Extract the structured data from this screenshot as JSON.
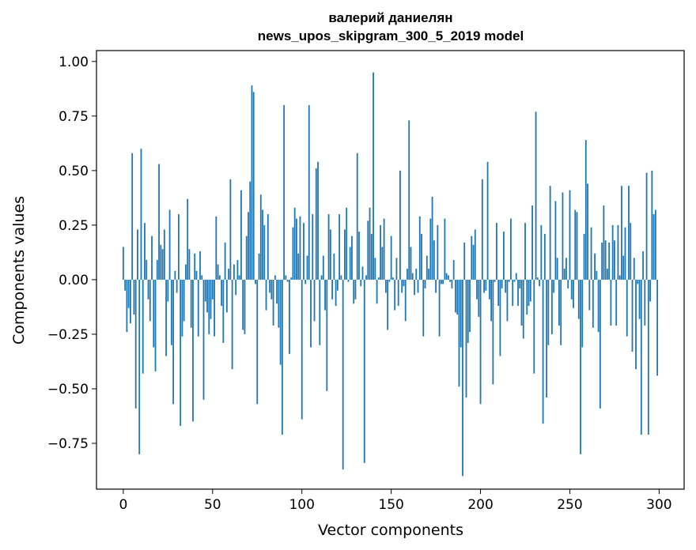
{
  "chart_data": {
    "type": "bar",
    "title_line1": "валерий даниелян",
    "title_line2": "news_upos_skipgram_300_5_2019 model",
    "xlabel": "Vector components",
    "ylabel": "Components values",
    "xlim": [
      -15,
      314
    ],
    "ylim": [
      -0.96,
      1.05
    ],
    "xticks": [
      "0",
      "50",
      "100",
      "150",
      "200",
      "250",
      "300"
    ],
    "xtick_values": [
      0,
      50,
      100,
      150,
      200,
      250,
      300
    ],
    "yticks": [
      "−0.75",
      "−0.50",
      "−0.25",
      "0.00",
      "0.25",
      "0.50",
      "0.75",
      "1.00"
    ],
    "ytick_values": [
      -0.75,
      -0.5,
      -0.25,
      0.0,
      0.25,
      0.5,
      0.75,
      1.0
    ],
    "bar_color": "#1f77b4",
    "grid": false,
    "x": "0..299 (component index)",
    "values": [
      0.15,
      -0.05,
      -0.24,
      -0.13,
      -0.2,
      0.58,
      -0.16,
      -0.59,
      0.23,
      -0.8,
      0.6,
      -0.43,
      0.26,
      0.09,
      -0.09,
      -0.19,
      0.2,
      -0.31,
      -0.42,
      0.09,
      0.53,
      0.16,
      0.14,
      0.23,
      -0.35,
      -0.1,
      0.32,
      -0.3,
      -0.57,
      0.04,
      -0.06,
      0.3,
      -0.67,
      -0.26,
      -0.19,
      0.07,
      0.37,
      0.14,
      -0.22,
      -0.65,
      0.12,
      0.04,
      -0.26,
      0.13,
      0.02,
      -0.55,
      -0.1,
      -0.15,
      -0.25,
      -0.18,
      -0.09,
      -0.26,
      0.29,
      0.07,
      0.02,
      -0.12,
      -0.29,
      0.17,
      -0.15,
      0.05,
      0.46,
      -0.41,
      0.07,
      -0.07,
      0.09,
      0.02,
      0.41,
      -0.23,
      -0.25,
      0.2,
      0.31,
      0.45,
      0.89,
      0.86,
      -0.02,
      -0.57,
      0.12,
      0.39,
      0.32,
      0.25,
      -0.14,
      0.3,
      -0.06,
      -0.09,
      -0.21,
      0.02,
      -0.11,
      -0.22,
      -0.39,
      -0.71,
      0.8,
      0.02,
      -0.01,
      -0.34,
      0.01,
      0.24,
      0.33,
      0.28,
      0.12,
      0.29,
      -0.64,
      0.26,
      -0.02,
      0.11,
      0.8,
      -0.31,
      0.3,
      -0.19,
      0.51,
      0.54,
      -0.3,
      0.02,
      0.11,
      -0.14,
      -0.51,
      0.3,
      0.23,
      -0.09,
      0.12,
      -0.12,
      -0.05,
      0.3,
      0.02,
      -0.87,
      0.23,
      0.33,
      -0.01,
      0.15,
      0.2,
      -0.11,
      -0.09,
      0.58,
      0.22,
      -0.03,
      0.06,
      -0.84,
      0.02,
      0.27,
      0.33,
      0.21,
      0.95,
      0.1,
      -0.11,
      0.01,
      0.25,
      0.15,
      0.28,
      -0.06,
      -0.23,
      -0.01,
      0.2,
      0.01,
      -0.14,
      0.1,
      -0.12,
      0.5,
      -0.06,
      -0.03,
      -0.19,
      0.05,
      0.73,
      0.15,
      0.03,
      -0.07,
      0.05,
      -0.06,
      0.29,
      0.21,
      -0.26,
      -0.04,
      0.11,
      0.05,
      0.28,
      0.38,
      0.18,
      -0.06,
      0.25,
      -0.26,
      -0.02,
      -0.02,
      0.28,
      0.03,
      0.02,
      -0.01,
      -0.04,
      0.09,
      -0.15,
      -0.16,
      -0.49,
      -0.31,
      -0.9,
      0.17,
      -0.54,
      -0.29,
      -0.24,
      0.2,
      0.16,
      0.23,
      -0.09,
      -0.17,
      -0.57,
      0.46,
      -0.06,
      -0.05,
      0.54,
      -0.09,
      -0.19,
      -0.48,
      -0.01,
      0.26,
      -0.12,
      -0.35,
      -0.04,
      0.22,
      -0.06,
      -0.19,
      -0.01,
      0.28,
      -0.12,
      -0.01,
      0.03,
      -0.12,
      -0.04,
      -0.21,
      -0.27,
      0.26,
      -0.16,
      -0.12,
      -0.1,
      0.34,
      -0.43,
      0.77,
      0.01,
      -0.03,
      0.25,
      -0.66,
      0.21,
      -0.54,
      -0.3,
      0.43,
      -0.25,
      -0.06,
      0.36,
      0.1,
      -0.21,
      -0.3,
      0.4,
      0.05,
      0.1,
      -0.04,
      0.41,
      -0.09,
      -0.13,
      0.32,
      0.31,
      -0.18,
      -0.8,
      -0.31,
      0.21,
      0.64,
      0.44,
      -0.14,
      0.24,
      -0.22,
      0.12,
      0.04,
      -0.24,
      -0.59,
      0.17,
      0.34,
      0.18,
      0.05,
      0.17,
      -0.21,
      0.25,
      0.18,
      -0.21,
      0.25,
      0.02,
      0.43,
      0.11,
      0.24,
      -0.26,
      0.43,
      0.26,
      -0.33,
      0.1,
      -0.41,
      -0.02,
      -0.18,
      -0.71,
      0.13,
      -0.21,
      0.49,
      -0.71,
      -0.1,
      0.5,
      0.3,
      0.32,
      -0.44
    ]
  }
}
